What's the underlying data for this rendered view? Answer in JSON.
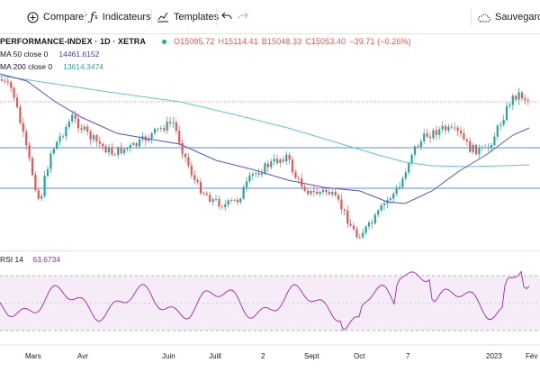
{
  "toolbar": {
    "compare_label": "Comparer",
    "indicators_label": "Indicateurs",
    "templates_label": "Templates",
    "save_label": "Sauvegarder"
  },
  "legend": {
    "symbol": "PERFORMANCE-INDEX · 1D · XETRA",
    "open": "O15095.72",
    "high": "H15114.41",
    "low": "B15048.33",
    "close": "C15053.40",
    "change": "−39.71 (−0.26%)",
    "ma50_label": "MA 50 close 0",
    "ma50_value": "14461.6152",
    "ma200_label": "MA 200 close 0",
    "ma200_value": "13614.3474"
  },
  "rsi": {
    "label": "RSI 14",
    "value": "63.6734"
  },
  "x_axis": [
    "Mars",
    "Avr",
    "Juin",
    "Juill",
    "2",
    "Sept",
    "Oct",
    "7",
    "2023",
    "Fév"
  ],
  "colors": {
    "up": "#26a69a",
    "down": "#ef5350",
    "ma50": "#5b4fd6",
    "ma200": "#5bc8d6",
    "rsi": "#9c27b0",
    "hline": "#2962ff"
  }
}
